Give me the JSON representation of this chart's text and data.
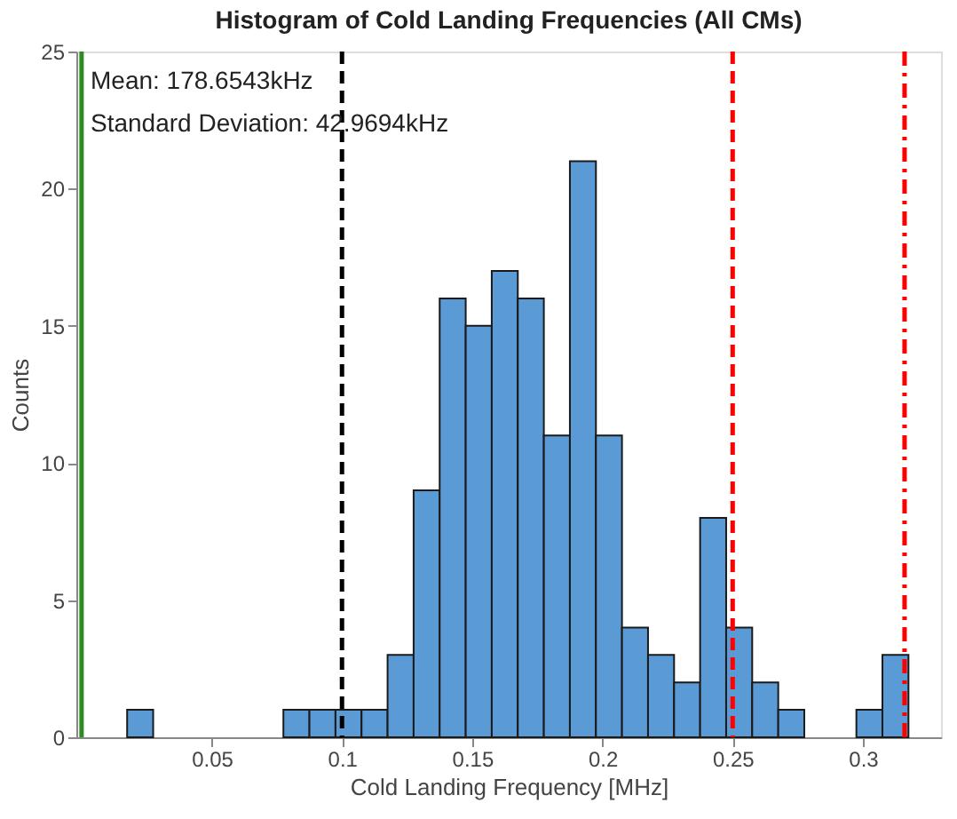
{
  "chart_data": {
    "type": "histogram",
    "title": "Histogram of Cold Landing Frequencies (All CMs)",
    "xlabel": "Cold Landing Frequency [MHz]",
    "ylabel": "Counts",
    "bins": [
      0.0175,
      0.0275,
      0.0375,
      0.0475,
      0.0575,
      0.0675,
      0.0775,
      0.0875,
      0.0975,
      0.1075,
      0.1175,
      0.1275,
      0.1375,
      0.1475,
      0.1575,
      0.1675,
      0.1775,
      0.1875,
      0.1975,
      0.2075,
      0.2175,
      0.2275,
      0.2375,
      0.2475,
      0.2575,
      0.2675,
      0.2775,
      0.2875,
      0.2975,
      0.3075,
      0.3175
    ],
    "values": [
      1,
      0,
      0,
      0,
      0,
      0,
      1,
      1,
      1,
      1,
      3,
      9,
      16,
      15,
      17,
      16,
      11,
      21,
      11,
      4,
      3,
      2,
      8,
      4,
      2,
      1,
      0,
      0,
      1,
      3
    ],
    "color": "#5b9bd5",
    "xlim": [
      -0.002,
      0.33
    ],
    "xticks": [
      0.05,
      0.1,
      0.15,
      0.2,
      0.25,
      0.3
    ],
    "ylim": [
      0,
      25
    ],
    "yticks": [
      0,
      5,
      10,
      15,
      20,
      25
    ],
    "grid": false,
    "annotations": [
      "Mean: 178.6543kHz",
      "Standard Deviation: 42.9694kHz"
    ],
    "ref_lines": [
      {
        "axis": "x",
        "value": 0,
        "color": "#2e8b22",
        "line_style": "solid"
      },
      {
        "axis": "x",
        "value": 0.1,
        "color": "#000000",
        "line_style": "dashed"
      },
      {
        "axis": "x",
        "value": 0.25,
        "color": "#ff0000",
        "line_style": "dashed"
      },
      {
        "axis": "x",
        "value": 0.316,
        "color": "#ff0000",
        "line_style": "dashdot"
      }
    ]
  }
}
